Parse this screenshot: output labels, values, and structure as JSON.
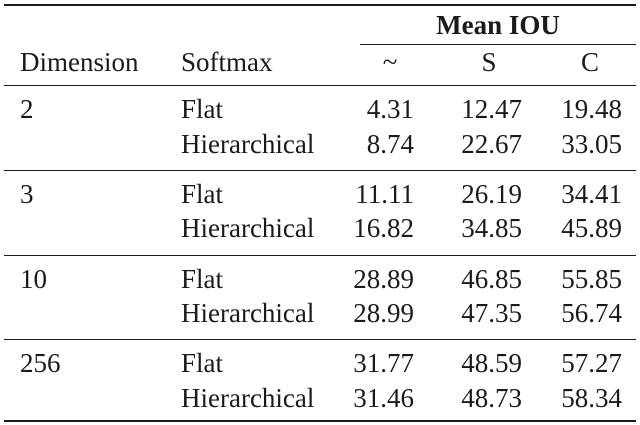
{
  "header": {
    "group_label": "Mean IOU",
    "columns": {
      "dimension": "Dimension",
      "softmax": "Softmax",
      "sub1": "~",
      "sub2": "S",
      "sub3": "C"
    }
  },
  "groups": [
    {
      "dimension": "2",
      "rows": [
        {
          "softmax": "Flat",
          "v1": "4.31",
          "v2": "12.47",
          "v3": "19.48"
        },
        {
          "softmax": "Hierarchical",
          "v1": "8.74",
          "v2": "22.67",
          "v3": "33.05"
        }
      ]
    },
    {
      "dimension": "3",
      "rows": [
        {
          "softmax": "Flat",
          "v1": "11.11",
          "v2": "26.19",
          "v3": "34.41"
        },
        {
          "softmax": "Hierarchical",
          "v1": "16.82",
          "v2": "34.85",
          "v3": "45.89"
        }
      ]
    },
    {
      "dimension": "10",
      "rows": [
        {
          "softmax": "Flat",
          "v1": "28.89",
          "v2": "46.85",
          "v3": "55.85"
        },
        {
          "softmax": "Hierarchical",
          "v1": "28.99",
          "v2": "47.35",
          "v3": "56.74"
        }
      ]
    },
    {
      "dimension": "256",
      "rows": [
        {
          "softmax": "Flat",
          "v1": "31.77",
          "v2": "48.59",
          "v3": "57.27"
        },
        {
          "softmax": "Hierarchical",
          "v1": "31.46",
          "v2": "48.73",
          "v3": "58.34"
        }
      ]
    }
  ]
}
